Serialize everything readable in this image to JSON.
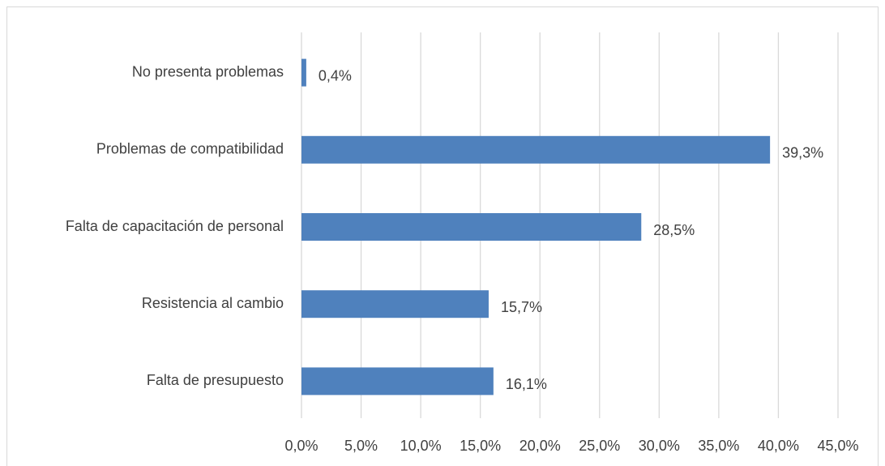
{
  "chart_data": {
    "type": "hbar",
    "categories": [
      "No presenta problemas",
      "Problemas de compatibilidad",
      "Falta de capacitación de personal",
      "Resistencia al cambio",
      "Falta de presupuesto"
    ],
    "values": [
      0.4,
      39.3,
      28.5,
      15.7,
      16.1
    ],
    "value_labels": [
      "0,4%",
      "39,3%",
      "28,5%",
      "15,7%",
      "16,1%"
    ],
    "color": "#4f81bd",
    "xlim": [
      0,
      45
    ],
    "xticks": [
      {
        "value": 0,
        "label": "0,0%"
      },
      {
        "value": 5,
        "label": "5,0%"
      },
      {
        "value": 10,
        "label": "10,0%"
      },
      {
        "value": 15,
        "label": "15,0%"
      },
      {
        "value": 20,
        "label": "20,0%"
      },
      {
        "value": 25,
        "label": "25,0%"
      },
      {
        "value": 30,
        "label": "30,0%"
      },
      {
        "value": 35,
        "label": "35,0%"
      },
      {
        "value": 40,
        "label": "40,0%"
      },
      {
        "value": 45,
        "label": "45,0%"
      }
    ],
    "grid": true
  }
}
